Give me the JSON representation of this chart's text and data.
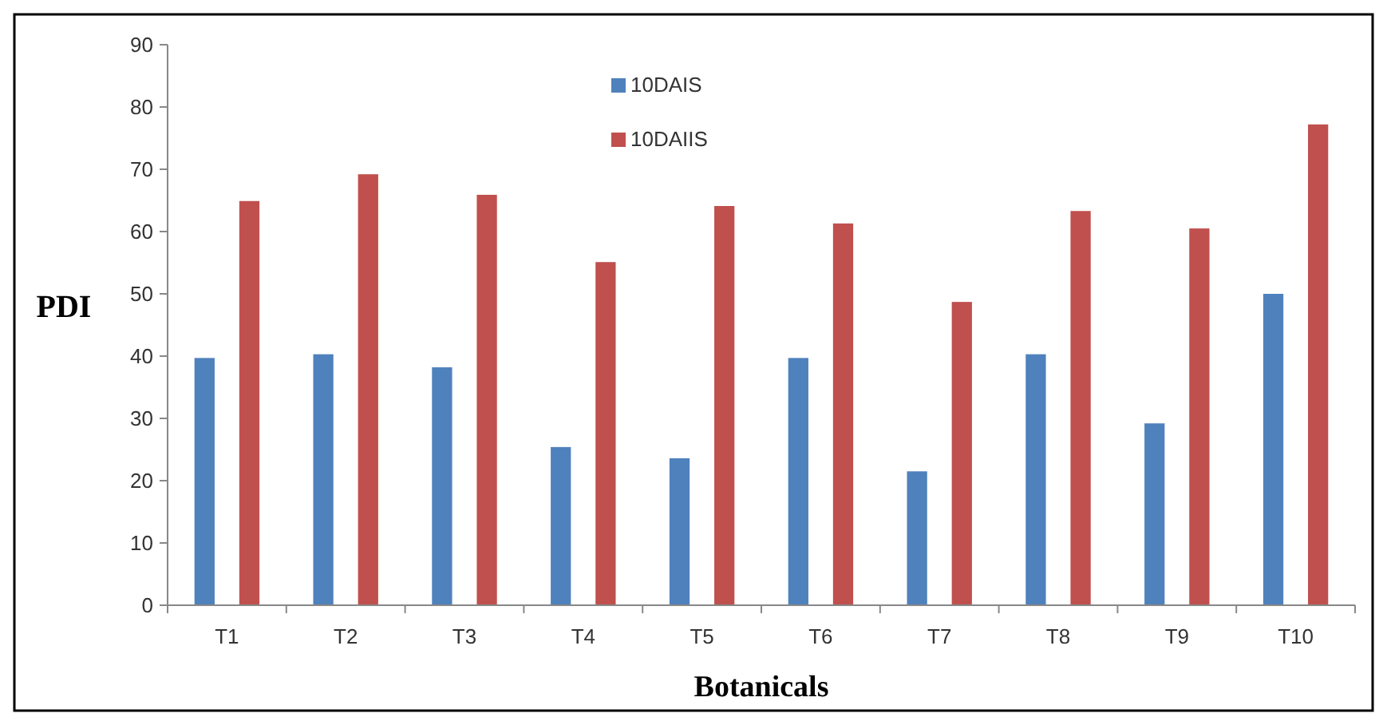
{
  "chart_data": {
    "type": "bar",
    "xlabel": "Botanicals",
    "ylabel": "PDI",
    "categories": [
      "T1",
      "T2",
      "T3",
      "T4",
      "T5",
      "T6",
      "T7",
      "T8",
      "T9",
      "T10"
    ],
    "series": [
      {
        "name": "10DAIS",
        "color": "#4f81bd",
        "values": [
          39.7,
          40.3,
          38.2,
          25.4,
          23.6,
          39.7,
          21.5,
          40.3,
          29.2,
          50
        ]
      },
      {
        "name": "10DAIIS",
        "color": "#c0504d",
        "values": [
          64.9,
          69.2,
          65.9,
          55.1,
          64.1,
          61.3,
          48.7,
          63.3,
          60.5,
          77.2
        ]
      }
    ],
    "ylim": [
      0,
      90
    ],
    "yticks": [
      0,
      10,
      20,
      30,
      40,
      50,
      60,
      70,
      80,
      90
    ],
    "grid": false,
    "legend": "top"
  }
}
